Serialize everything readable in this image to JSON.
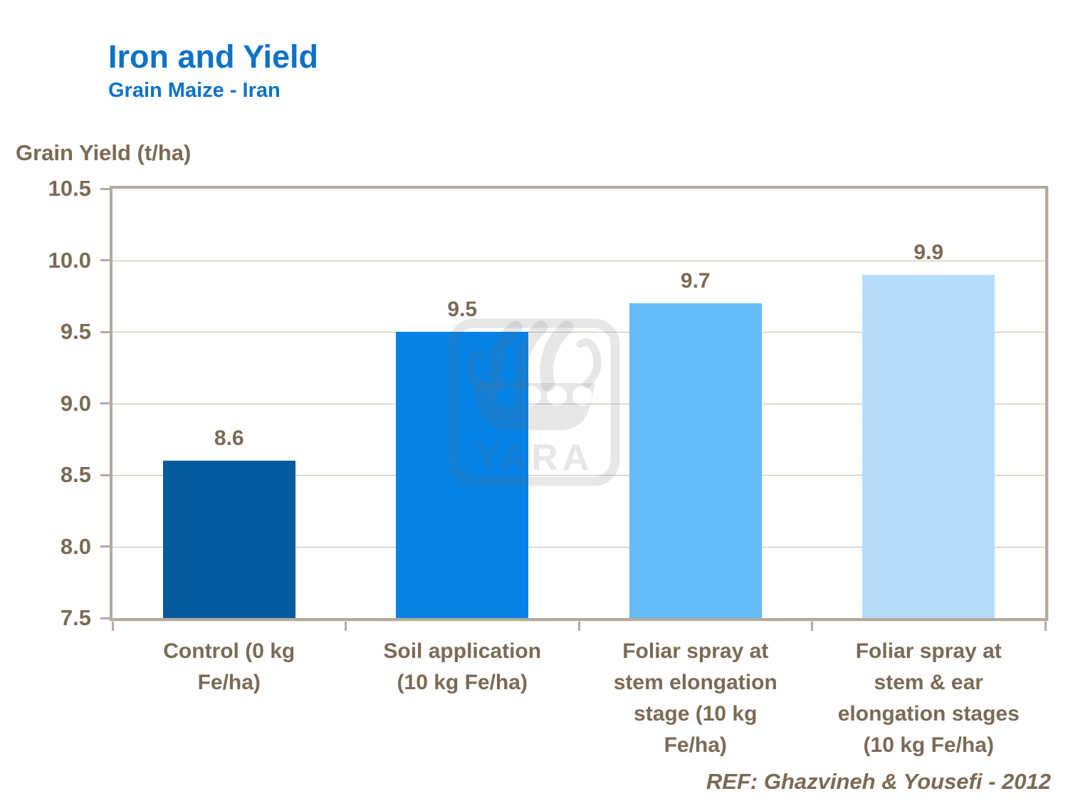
{
  "header": {
    "title": "Iron and Yield",
    "subtitle": "Grain Maize - Iran",
    "title_color": "#0d72c8"
  },
  "chart_data": {
    "type": "bar",
    "title": "Iron and Yield",
    "subtitle": "Grain Maize - Iran",
    "y_axis_title": "Grain Yield (t/ha)",
    "categories": [
      "Control (0 kg\nFe/ha)",
      "Soil application\n(10 kg Fe/ha)",
      "Foliar spray at\nstem elongation\nstage (10 kg\nFe/ha)",
      "Foliar spray at\nstem & ear\nelongation stages\n(10 kg Fe/ha)"
    ],
    "values": [
      8.6,
      9.5,
      9.7,
      9.9
    ],
    "value_labels": [
      "8.6",
      "9.5",
      "9.7",
      "9.9"
    ],
    "bar_colors": [
      "#065a9e",
      "#0682e6",
      "#66bbf9",
      "#b5ddfb"
    ],
    "ylim": [
      7.5,
      10.5
    ],
    "yticks": [
      7.5,
      8.0,
      8.5,
      9.0,
      9.5,
      10.0,
      10.5
    ],
    "ytick_decimals": 1,
    "grid": "horizontal",
    "gridline_color": "#c7bcab",
    "axis_color": "#b4aa9d",
    "text_color": "#7b6a55",
    "legend": "none"
  },
  "watermark": {
    "name": "yara-viking-ship-logo",
    "label": "YARA",
    "color": "rgba(112,112,112,0.17)"
  },
  "footer": {
    "reference": "REF: Ghazvineh & Yousefi - 2012"
  }
}
